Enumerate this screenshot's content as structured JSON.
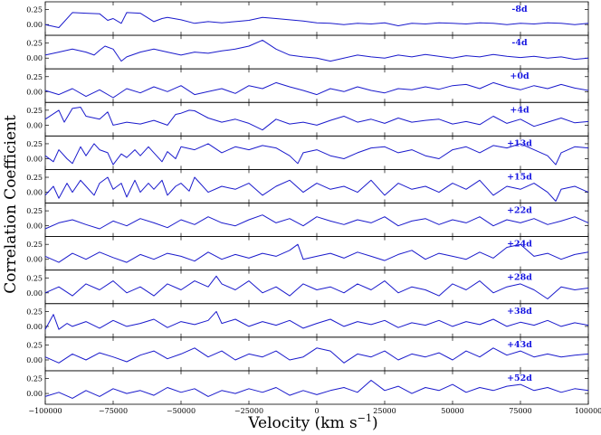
{
  "chart_data": {
    "type": "line",
    "xlabel": "Velocity (km s",
    "xlabel_sup": "−1",
    "xlabel_end": ")",
    "ylabel": "Correlation Coefficient",
    "xlim": [
      -100000,
      100000
    ],
    "ylim": [
      -0.18,
      0.38
    ],
    "xticks": [
      -100000,
      -75000,
      -50000,
      -25000,
      0,
      25000,
      50000,
      75000,
      100000
    ],
    "xtick_labels": [
      "−100000",
      "−75000",
      "−50000",
      "−25000",
      "0",
      "25000",
      "50000",
      "75000",
      "100000"
    ],
    "yticks": [
      0.0,
      0.25
    ],
    "ytick_labels": [
      "0.00",
      "0.25"
    ],
    "series_color": "#1a1acc",
    "label_color": "#1515e0",
    "panels": [
      {
        "label": "-8d",
        "x": [
          -100000,
          -95000,
          -90000,
          -85000,
          -80000,
          -77000,
          -75000,
          -72000,
          -70000,
          -65000,
          -60000,
          -57000,
          -55000,
          -50000,
          -45000,
          -40000,
          -35000,
          -30000,
          -25000,
          -20000,
          -15000,
          -10000,
          -5000,
          0,
          5000,
          10000,
          15000,
          20000,
          25000,
          30000,
          35000,
          40000,
          45000,
          50000,
          55000,
          60000,
          65000,
          70000,
          75000,
          80000,
          85000,
          90000,
          95000,
          100000
        ],
        "y": [
          0.0,
          -0.05,
          0.2,
          0.19,
          0.18,
          0.07,
          0.1,
          0.02,
          0.2,
          0.19,
          0.05,
          0.1,
          0.12,
          0.08,
          0.02,
          0.05,
          0.03,
          0.05,
          0.07,
          0.12,
          0.1,
          0.08,
          0.06,
          0.03,
          0.02,
          0.0,
          0.02,
          0.01,
          0.03,
          -0.02,
          0.02,
          0.01,
          0.03,
          0.02,
          0.01,
          0.03,
          0.02,
          0.0,
          0.02,
          0.01,
          0.03,
          0.02,
          0.0,
          0.02
        ]
      },
      {
        "label": "-4d",
        "x": [
          -100000,
          -95000,
          -90000,
          -85000,
          -82000,
          -80000,
          -78000,
          -75000,
          -72000,
          -70000,
          -65000,
          -60000,
          -55000,
          -50000,
          -45000,
          -40000,
          -35000,
          -30000,
          -25000,
          -20000,
          -15000,
          -10000,
          -5000,
          0,
          5000,
          10000,
          15000,
          20000,
          25000,
          30000,
          35000,
          40000,
          45000,
          50000,
          55000,
          60000,
          65000,
          70000,
          75000,
          80000,
          85000,
          90000,
          95000,
          100000
        ],
        "y": [
          0.05,
          0.1,
          0.15,
          0.1,
          0.05,
          0.13,
          0.2,
          0.15,
          -0.05,
          0.02,
          0.1,
          0.15,
          0.1,
          0.05,
          0.1,
          0.08,
          0.12,
          0.15,
          0.2,
          0.3,
          0.15,
          0.05,
          0.02,
          0.0,
          -0.05,
          0.0,
          0.05,
          0.02,
          0.0,
          0.05,
          0.02,
          0.06,
          0.03,
          0.0,
          0.04,
          0.02,
          0.06,
          0.03,
          0.01,
          0.03,
          0.0,
          0.02,
          -0.02,
          0.0
        ]
      },
      {
        "label": "+0d",
        "x": [
          -100000,
          -95000,
          -90000,
          -85000,
          -80000,
          -75000,
          -70000,
          -65000,
          -60000,
          -55000,
          -50000,
          -45000,
          -40000,
          -35000,
          -30000,
          -25000,
          -20000,
          -15000,
          -10000,
          -5000,
          0,
          5000,
          10000,
          15000,
          20000,
          25000,
          30000,
          35000,
          40000,
          45000,
          50000,
          55000,
          60000,
          65000,
          70000,
          75000,
          80000,
          85000,
          90000,
          95000,
          100000
        ],
        "y": [
          0.02,
          -0.05,
          0.05,
          -0.08,
          0.03,
          -0.1,
          0.05,
          -0.02,
          0.08,
          0.0,
          0.1,
          -0.05,
          0.0,
          0.05,
          -0.03,
          0.1,
          0.05,
          0.15,
          0.08,
          0.02,
          -0.05,
          0.05,
          0.0,
          0.08,
          0.02,
          -0.02,
          0.05,
          0.03,
          0.08,
          0.04,
          0.1,
          0.12,
          0.05,
          0.15,
          0.08,
          0.03,
          0.1,
          0.05,
          0.12,
          0.06,
          0.02
        ]
      },
      {
        "label": "+4d",
        "x": [
          -100000,
          -95000,
          -93000,
          -90000,
          -87000,
          -85000,
          -80000,
          -77000,
          -75000,
          -70000,
          -65000,
          -60000,
          -55000,
          -52000,
          -50000,
          -47000,
          -45000,
          -40000,
          -35000,
          -30000,
          -25000,
          -20000,
          -15000,
          -10000,
          -5000,
          0,
          5000,
          10000,
          15000,
          20000,
          25000,
          30000,
          35000,
          40000,
          45000,
          50000,
          55000,
          60000,
          65000,
          70000,
          75000,
          80000,
          85000,
          90000,
          95000,
          100000
        ],
        "y": [
          0.1,
          0.25,
          0.05,
          0.28,
          0.3,
          0.15,
          0.1,
          0.22,
          0.0,
          0.05,
          0.02,
          0.08,
          0.0,
          0.18,
          0.2,
          0.25,
          0.24,
          0.12,
          0.05,
          0.1,
          0.03,
          -0.08,
          0.1,
          0.02,
          0.05,
          0.0,
          0.08,
          0.15,
          0.05,
          0.1,
          0.03,
          0.12,
          0.05,
          0.08,
          0.1,
          0.02,
          0.06,
          0.01,
          0.15,
          0.03,
          0.1,
          -0.02,
          0.05,
          0.12,
          0.04,
          0.06
        ]
      },
      {
        "label": "+13d",
        "x": [
          -100000,
          -97000,
          -95000,
          -92000,
          -90000,
          -87000,
          -85000,
          -82000,
          -80000,
          -77000,
          -75000,
          -72000,
          -70000,
          -67000,
          -65000,
          -62000,
          -60000,
          -57000,
          -55000,
          -52000,
          -50000,
          -45000,
          -40000,
          -35000,
          -30000,
          -25000,
          -20000,
          -15000,
          -10000,
          -7000,
          -5000,
          0,
          5000,
          10000,
          15000,
          20000,
          25000,
          30000,
          35000,
          40000,
          45000,
          50000,
          55000,
          60000,
          65000,
          70000,
          75000,
          80000,
          85000,
          88000,
          90000,
          95000,
          100000
        ],
        "y": [
          0.05,
          -0.05,
          0.15,
          0.0,
          -0.08,
          0.2,
          0.05,
          0.25,
          0.15,
          0.1,
          -0.1,
          0.08,
          0.02,
          0.15,
          0.05,
          0.2,
          0.1,
          -0.05,
          0.12,
          0.0,
          0.2,
          0.15,
          0.25,
          0.1,
          0.2,
          0.15,
          0.22,
          0.18,
          0.05,
          -0.08,
          0.1,
          0.15,
          0.05,
          0.0,
          0.1,
          0.18,
          0.2,
          0.1,
          0.15,
          0.05,
          0.0,
          0.15,
          0.2,
          0.1,
          0.22,
          0.18,
          0.25,
          0.15,
          0.05,
          -0.1,
          0.1,
          0.2,
          0.18
        ]
      },
      {
        "label": "+15d",
        "x": [
          -100000,
          -97000,
          -95000,
          -92000,
          -90000,
          -87000,
          -85000,
          -82000,
          -80000,
          -77000,
          -75000,
          -72000,
          -70000,
          -67000,
          -65000,
          -62000,
          -60000,
          -57000,
          -55000,
          -52000,
          -50000,
          -47000,
          -45000,
          -40000,
          -35000,
          -30000,
          -25000,
          -20000,
          -15000,
          -10000,
          -5000,
          0,
          5000,
          10000,
          15000,
          20000,
          25000,
          30000,
          35000,
          40000,
          45000,
          50000,
          55000,
          60000,
          65000,
          70000,
          75000,
          80000,
          85000,
          88000,
          90000,
          95000,
          100000
        ],
        "y": [
          -0.05,
          0.1,
          -0.1,
          0.15,
          0.0,
          0.2,
          0.1,
          -0.05,
          0.15,
          0.25,
          0.05,
          0.15,
          -0.08,
          0.2,
          0.0,
          0.15,
          0.05,
          0.2,
          -0.05,
          0.1,
          0.15,
          0.02,
          0.25,
          0.0,
          0.1,
          0.05,
          0.15,
          -0.05,
          0.1,
          0.2,
          0.0,
          0.15,
          0.05,
          0.1,
          0.0,
          0.2,
          -0.05,
          0.15,
          0.05,
          0.1,
          0.0,
          0.15,
          0.05,
          0.2,
          -0.05,
          0.1,
          0.05,
          0.15,
          0.0,
          -0.15,
          0.05,
          0.1,
          0.0
        ]
      },
      {
        "label": "+22d",
        "x": [
          -100000,
          -95000,
          -90000,
          -85000,
          -80000,
          -75000,
          -70000,
          -65000,
          -60000,
          -55000,
          -50000,
          -45000,
          -40000,
          -35000,
          -30000,
          -25000,
          -20000,
          -15000,
          -10000,
          -5000,
          0,
          5000,
          10000,
          15000,
          20000,
          25000,
          30000,
          35000,
          40000,
          45000,
          50000,
          55000,
          60000,
          65000,
          70000,
          75000,
          80000,
          85000,
          90000,
          95000,
          100000
        ],
        "y": [
          -0.05,
          0.05,
          0.1,
          0.02,
          -0.05,
          0.08,
          0.0,
          0.12,
          0.05,
          -0.03,
          0.1,
          0.02,
          0.15,
          0.05,
          0.0,
          0.1,
          0.18,
          0.05,
          0.12,
          0.0,
          0.15,
          0.08,
          0.02,
          0.1,
          0.05,
          0.15,
          0.0,
          0.08,
          0.12,
          0.02,
          0.1,
          0.05,
          0.15,
          0.0,
          0.1,
          0.05,
          0.12,
          0.02,
          0.08,
          0.15,
          0.05
        ]
      },
      {
        "label": "+24d",
        "x": [
          -100000,
          -95000,
          -90000,
          -85000,
          -80000,
          -75000,
          -70000,
          -65000,
          -60000,
          -55000,
          -50000,
          -45000,
          -40000,
          -35000,
          -30000,
          -25000,
          -20000,
          -15000,
          -10000,
          -7000,
          -5000,
          0,
          5000,
          10000,
          15000,
          20000,
          25000,
          30000,
          35000,
          40000,
          45000,
          50000,
          55000,
          60000,
          65000,
          70000,
          75000,
          80000,
          85000,
          90000,
          95000,
          100000
        ],
        "y": [
          0.05,
          -0.05,
          0.1,
          0.0,
          0.12,
          0.03,
          -0.05,
          0.08,
          0.0,
          0.1,
          0.05,
          -0.03,
          0.12,
          0.0,
          0.08,
          0.02,
          0.1,
          0.05,
          0.15,
          0.25,
          0.0,
          0.05,
          0.1,
          0.02,
          0.12,
          0.05,
          -0.02,
          0.08,
          0.15,
          0.0,
          0.1,
          0.05,
          0.0,
          0.12,
          0.02,
          0.2,
          0.25,
          0.05,
          0.1,
          0.0,
          0.08,
          0.12
        ]
      },
      {
        "label": "+28d",
        "x": [
          -100000,
          -95000,
          -90000,
          -85000,
          -80000,
          -75000,
          -70000,
          -65000,
          -60000,
          -55000,
          -50000,
          -45000,
          -40000,
          -37000,
          -35000,
          -30000,
          -25000,
          -20000,
          -15000,
          -10000,
          -5000,
          0,
          5000,
          10000,
          15000,
          20000,
          25000,
          30000,
          35000,
          40000,
          45000,
          50000,
          55000,
          60000,
          65000,
          70000,
          75000,
          80000,
          85000,
          90000,
          95000,
          100000
        ],
        "y": [
          0.0,
          0.1,
          -0.05,
          0.15,
          0.05,
          0.2,
          0.0,
          0.1,
          -0.05,
          0.15,
          0.05,
          0.2,
          0.1,
          0.28,
          0.15,
          0.05,
          0.2,
          0.0,
          0.1,
          -0.05,
          0.15,
          0.05,
          0.1,
          0.0,
          0.15,
          0.05,
          0.2,
          0.0,
          0.1,
          0.05,
          -0.05,
          0.15,
          0.05,
          0.2,
          0.0,
          0.1,
          0.15,
          0.05,
          -0.1,
          0.1,
          0.05,
          0.08
        ]
      },
      {
        "label": "+38d",
        "x": [
          -100000,
          -97000,
          -95000,
          -92000,
          -90000,
          -85000,
          -80000,
          -75000,
          -70000,
          -65000,
          -60000,
          -55000,
          -50000,
          -45000,
          -40000,
          -37000,
          -35000,
          -30000,
          -25000,
          -20000,
          -15000,
          -10000,
          -5000,
          0,
          5000,
          10000,
          15000,
          20000,
          25000,
          30000,
          35000,
          40000,
          45000,
          50000,
          55000,
          60000,
          65000,
          70000,
          75000,
          80000,
          85000,
          90000,
          95000,
          100000
        ],
        "y": [
          -0.05,
          0.2,
          -0.05,
          0.05,
          0.0,
          0.08,
          -0.03,
          0.1,
          0.0,
          0.05,
          0.12,
          -0.02,
          0.08,
          0.03,
          0.1,
          0.25,
          0.05,
          0.12,
          0.0,
          0.08,
          0.02,
          0.1,
          -0.03,
          0.05,
          0.12,
          0.0,
          0.08,
          0.03,
          0.1,
          -0.02,
          0.06,
          0.02,
          0.1,
          0.0,
          0.08,
          0.03,
          0.12,
          0.0,
          0.07,
          0.02,
          0.1,
          0.0,
          0.06,
          0.02
        ]
      },
      {
        "label": "+43d",
        "x": [
          -100000,
          -95000,
          -90000,
          -85000,
          -80000,
          -75000,
          -70000,
          -65000,
          -60000,
          -55000,
          -50000,
          -45000,
          -40000,
          -35000,
          -30000,
          -25000,
          -20000,
          -15000,
          -10000,
          -5000,
          0,
          2000,
          5000,
          10000,
          15000,
          20000,
          25000,
          30000,
          35000,
          40000,
          45000,
          50000,
          55000,
          60000,
          65000,
          70000,
          75000,
          80000,
          85000,
          90000,
          95000,
          100000
        ],
        "y": [
          0.05,
          -0.05,
          0.1,
          0.0,
          0.12,
          0.05,
          -0.03,
          0.08,
          0.15,
          0.02,
          0.1,
          0.2,
          0.05,
          0.15,
          0.0,
          0.1,
          0.05,
          0.15,
          0.0,
          0.05,
          0.2,
          0.18,
          0.15,
          -0.05,
          0.1,
          0.05,
          0.15,
          0.0,
          0.1,
          0.05,
          0.12,
          0.0,
          0.15,
          0.05,
          0.2,
          0.08,
          0.15,
          0.05,
          0.1,
          0.05,
          0.08,
          0.1
        ]
      },
      {
        "label": "+52d",
        "x": [
          -100000,
          -95000,
          -90000,
          -85000,
          -80000,
          -75000,
          -70000,
          -65000,
          -60000,
          -55000,
          -50000,
          -45000,
          -40000,
          -35000,
          -30000,
          -25000,
          -20000,
          -15000,
          -10000,
          -5000,
          0,
          5000,
          10000,
          15000,
          20000,
          25000,
          30000,
          35000,
          40000,
          45000,
          50000,
          55000,
          60000,
          65000,
          70000,
          75000,
          80000,
          85000,
          90000,
          95000,
          100000
        ],
        "y": [
          -0.05,
          0.02,
          -0.08,
          0.05,
          -0.05,
          0.08,
          0.0,
          0.05,
          -0.03,
          0.1,
          0.02,
          0.08,
          -0.05,
          0.05,
          0.0,
          0.08,
          0.02,
          0.1,
          -0.03,
          0.05,
          -0.02,
          0.05,
          0.1,
          0.02,
          0.22,
          0.05,
          0.12,
          0.0,
          0.1,
          0.05,
          0.15,
          0.02,
          0.1,
          0.05,
          0.12,
          0.15,
          0.05,
          0.1,
          0.02,
          0.08,
          0.05
        ]
      }
    ]
  }
}
